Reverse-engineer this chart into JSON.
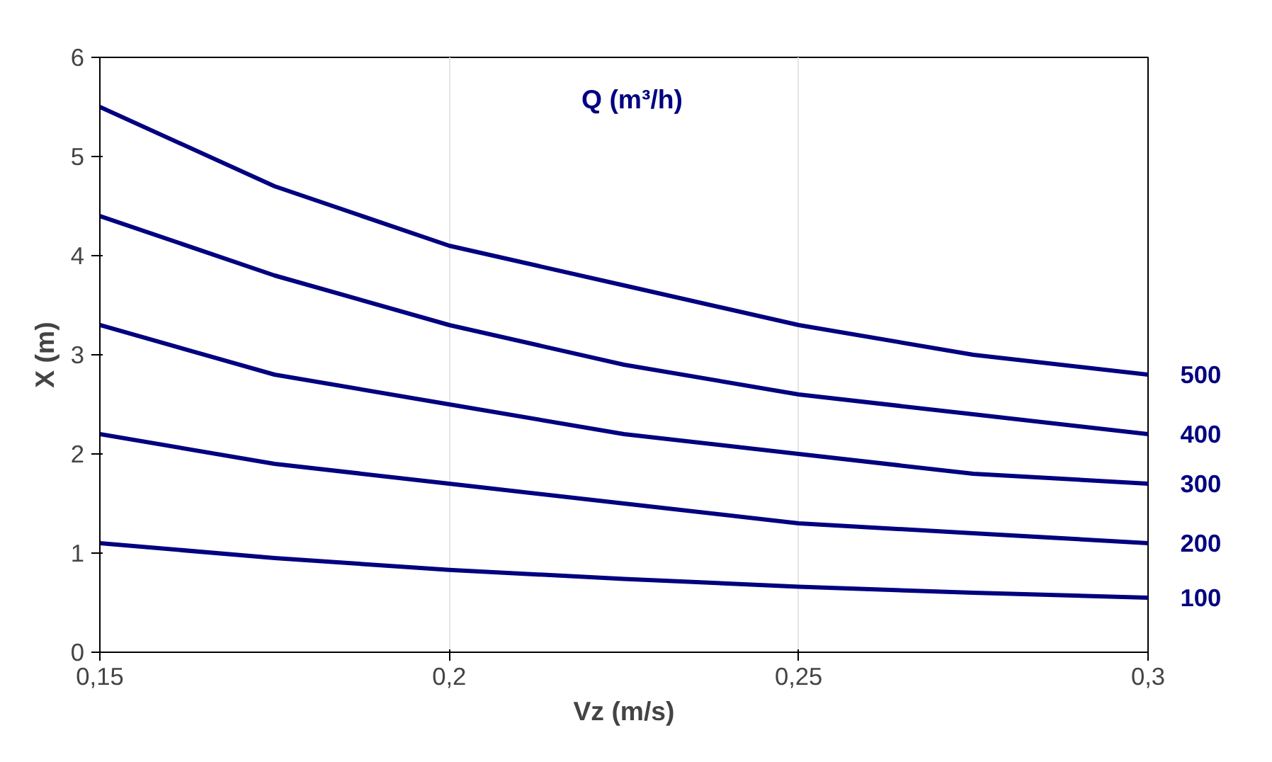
{
  "chart_data": {
    "type": "line",
    "xlabel": "Vz (m/s)",
    "ylabel": "X (m)",
    "annotations": [
      "Q (m³/h)"
    ],
    "x": [
      0.15,
      0.175,
      0.2,
      0.225,
      0.25,
      0.275,
      0.3
    ],
    "xlim": [
      0.15,
      0.3
    ],
    "xticks": [
      {
        "value": 0.15,
        "label": "0,15"
      },
      {
        "value": 0.2,
        "label": "0,2"
      },
      {
        "value": 0.25,
        "label": "0,25"
      },
      {
        "value": 0.3,
        "label": "0,3"
      }
    ],
    "ylim": [
      0,
      6
    ],
    "yticks": [
      0,
      1,
      2,
      3,
      4,
      5,
      6
    ],
    "grid": "x",
    "marker": "none",
    "line_style": "solid",
    "series": [
      {
        "name": "500",
        "color": "#000080",
        "values": [
          5.5,
          4.7,
          4.1,
          3.7,
          3.3,
          3.0,
          2.8
        ]
      },
      {
        "name": "400",
        "color": "#000080",
        "values": [
          4.4,
          3.8,
          3.3,
          2.9,
          2.6,
          2.4,
          2.2
        ]
      },
      {
        "name": "300",
        "color": "#000080",
        "values": [
          3.3,
          2.8,
          2.5,
          2.2,
          2.0,
          1.8,
          1.7
        ]
      },
      {
        "name": "200",
        "color": "#000080",
        "values": [
          2.2,
          1.9,
          1.7,
          1.5,
          1.3,
          1.2,
          1.1
        ]
      },
      {
        "name": "100",
        "color": "#000080",
        "values": [
          1.1,
          0.95,
          0.83,
          0.74,
          0.66,
          0.6,
          0.55
        ]
      }
    ]
  }
}
